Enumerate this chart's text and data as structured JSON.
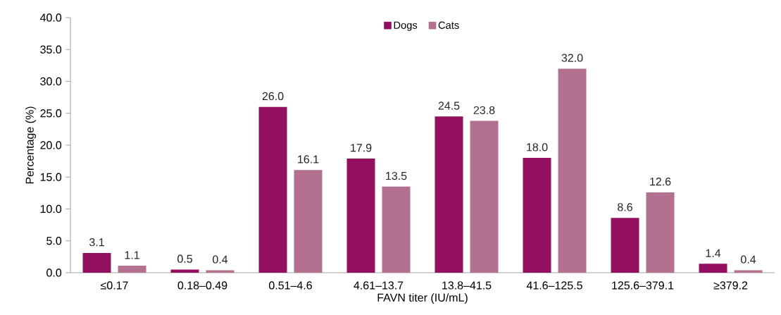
{
  "chart_data": {
    "type": "bar",
    "xlabel": "FAVN titer (IU/mL)",
    "ylabel": "Percentage (%)",
    "categories": [
      "≤0.17",
      "0.18–0.49",
      "0.51–4.6",
      "4.61–13.7",
      "13.8–41.5",
      "41.6–125.5",
      "125.6–379.1",
      "≥379.2"
    ],
    "series": [
      {
        "name": "Dogs",
        "color": "#930f5f",
        "values": [
          3.1,
          0.5,
          26.0,
          17.9,
          24.5,
          18.0,
          8.6,
          1.4
        ],
        "value_labels": [
          "3.1",
          "0.5",
          "26.0",
          "17.9",
          "24.5",
          "18.0",
          "8.6",
          "1.4"
        ]
      },
      {
        "name": "Cats",
        "color": "#b3708f",
        "values": [
          1.1,
          0.4,
          16.1,
          13.5,
          23.8,
          32.0,
          12.6,
          0.4
        ],
        "value_labels": [
          "1.1",
          "0.4",
          "16.1",
          "13.5",
          "23.8",
          "32.0",
          "12.6",
          "0.4"
        ]
      }
    ],
    "ylim": [
      0,
      40
    ],
    "yticks": [
      {
        "value": 0,
        "label": "0.0"
      },
      {
        "value": 5,
        "label": "5.0"
      },
      {
        "value": 10,
        "label": "10.0"
      },
      {
        "value": 15,
        "label": "15.0"
      },
      {
        "value": 20,
        "label": "20.0"
      },
      {
        "value": 25,
        "label": "25.0"
      },
      {
        "value": 30,
        "label": "30.0"
      },
      {
        "value": 35,
        "label": "35.0"
      },
      {
        "value": 40,
        "label": "40.0"
      }
    ],
    "legend": "top",
    "grid": false
  }
}
